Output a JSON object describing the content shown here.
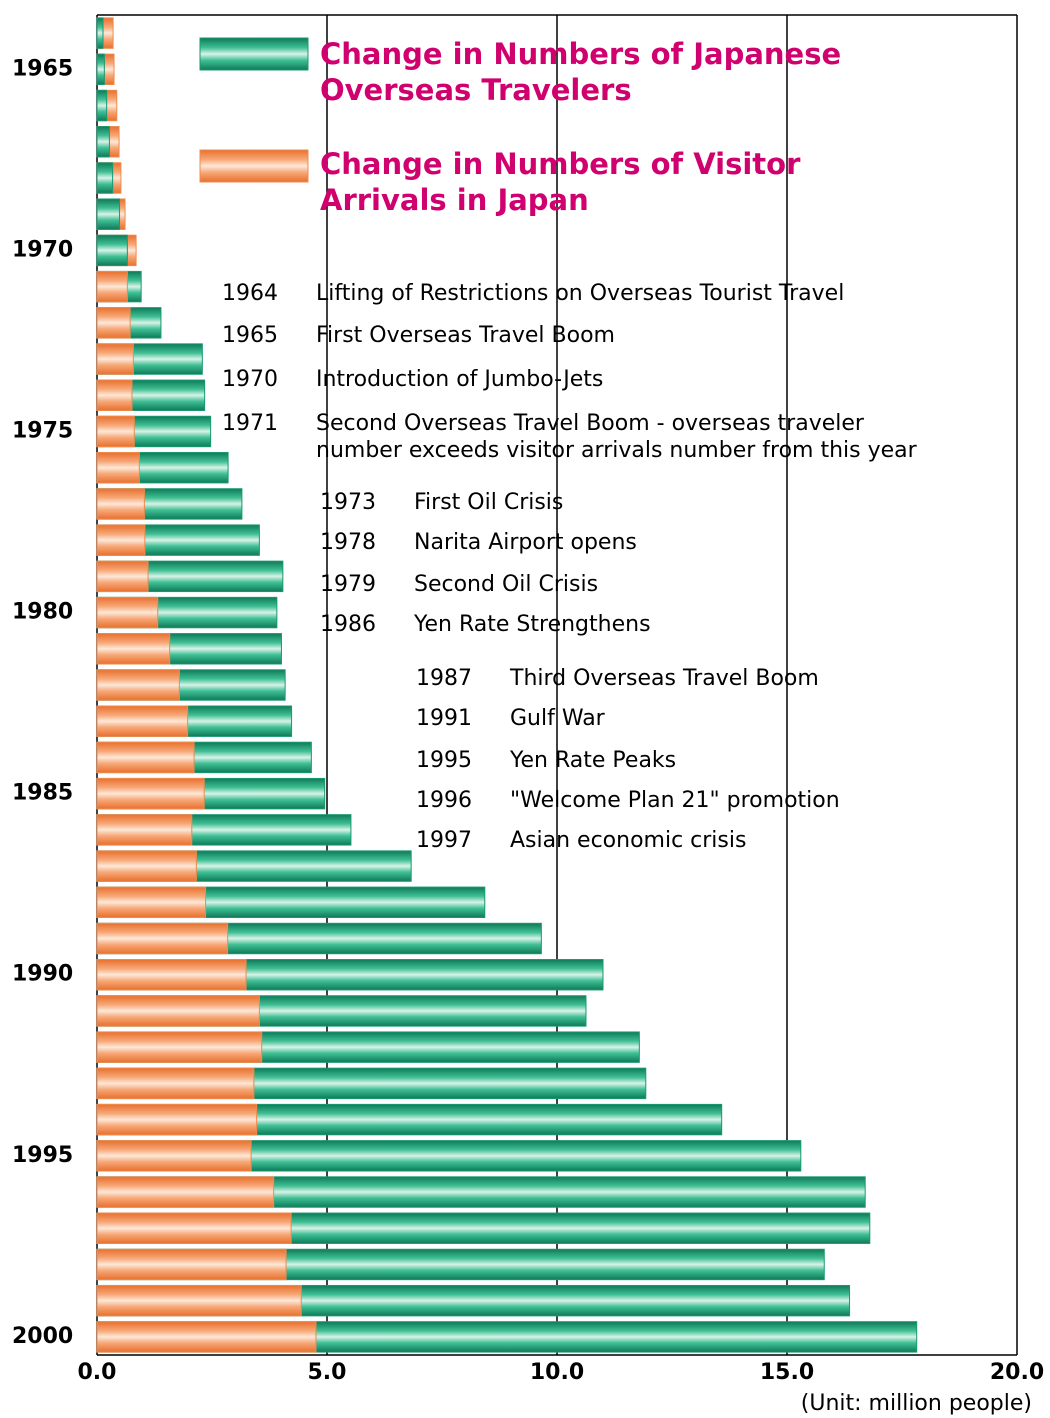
{
  "chart_data": {
    "type": "overlap-barh",
    "categories": [
      null,
      "1965",
      null,
      null,
      null,
      null,
      "1970",
      null,
      null,
      null,
      null,
      "1975",
      null,
      null,
      null,
      null,
      "1980",
      null,
      null,
      null,
      null,
      "1985",
      null,
      null,
      null,
      null,
      "1990",
      null,
      null,
      null,
      null,
      "1995",
      null,
      null,
      null,
      null,
      "2000"
    ],
    "series": [
      {
        "name": "Change in Numbers of Japanese Overseas Travelers",
        "color": "#1a9970",
        "values": [
          0.13,
          0.16,
          0.21,
          0.27,
          0.34,
          0.49,
          0.66,
          0.96,
          1.39,
          2.29,
          2.34,
          2.47,
          2.85,
          3.15,
          3.53,
          4.04,
          3.91,
          4.01,
          4.09,
          4.23,
          4.66,
          4.95,
          5.52,
          6.83,
          8.43,
          9.66,
          11.0,
          10.63,
          11.79,
          11.93,
          13.58,
          15.3,
          16.7,
          16.8,
          15.81,
          16.36,
          17.82
        ]
      },
      {
        "name": "Change in Numbers of Visitor Arrivals in Japan",
        "color": "#f08a4b",
        "values": [
          0.35,
          0.37,
          0.43,
          0.48,
          0.52,
          0.61,
          0.85,
          0.66,
          0.72,
          0.79,
          0.76,
          0.81,
          0.92,
          1.03,
          1.04,
          1.11,
          1.32,
          1.58,
          1.79,
          1.97,
          2.11,
          2.33,
          2.06,
          2.16,
          2.36,
          2.84,
          3.24,
          3.53,
          3.58,
          3.41,
          3.47,
          3.35,
          3.84,
          4.22,
          4.11,
          4.44,
          4.76
        ]
      }
    ],
    "xlim": [
      0,
      20
    ],
    "xticks": [
      {
        "value": 0,
        "label": "0.0"
      },
      {
        "value": 5,
        "label": "5.0"
      },
      {
        "value": 10,
        "label": "10.0"
      },
      {
        "value": 15,
        "label": "15.0"
      },
      {
        "value": 20,
        "label": "20.0"
      }
    ],
    "grid": true,
    "unit_label": "(Unit: million people)",
    "events": [
      {
        "year": "1964",
        "lines": [
          "Lifting of Restrictions on Overseas Tourist Travel"
        ]
      },
      {
        "year": "1965",
        "lines": [
          "First Overseas Travel Boom"
        ]
      },
      {
        "year": "1970",
        "lines": [
          "Introduction of Jumbo-Jets"
        ]
      },
      {
        "year": "1971",
        "lines": [
          "Second Overseas Travel Boom - overseas traveler",
          "number exceeds visitor arrivals number from this year"
        ]
      },
      {
        "year": "1973",
        "lines": [
          "First Oil Crisis"
        ]
      },
      {
        "year": "1978",
        "lines": [
          "Narita Airport opens"
        ]
      },
      {
        "year": "1979",
        "lines": [
          "Second Oil Crisis"
        ]
      },
      {
        "year": "1986",
        "lines": [
          "Yen Rate Strengthens"
        ]
      },
      {
        "year": "1987",
        "lines": [
          "Third Overseas Travel Boom"
        ]
      },
      {
        "year": "1991",
        "lines": [
          "Gulf War"
        ]
      },
      {
        "year": "1995",
        "lines": [
          "Yen Rate Peaks"
        ]
      },
      {
        "year": "1996",
        "lines": [
          "\"Welcome Plan 21\" promotion"
        ]
      },
      {
        "year": "1997",
        "lines": [
          "Asian economic crisis"
        ]
      }
    ]
  }
}
